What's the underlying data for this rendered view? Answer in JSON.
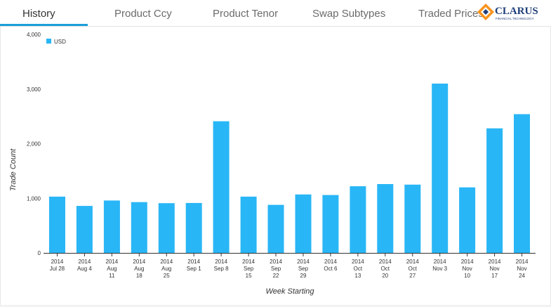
{
  "tabs": [
    {
      "label": "History",
      "active": true
    },
    {
      "label": "Product Ccy",
      "active": false
    },
    {
      "label": "Product Tenor",
      "active": false
    },
    {
      "label": "Swap Subtypes",
      "active": false
    },
    {
      "label": "Traded Prices",
      "active": false
    }
  ],
  "logo": {
    "name": "CLARUS",
    "tagline": "FINANCIAL TECHNOLOGY"
  },
  "colors": {
    "accent": "#1a9fd9",
    "bar": "#29b6f6",
    "logo_orange": "#f7941d",
    "logo_navy": "#1f3f7a"
  },
  "chart_data": {
    "type": "bar",
    "ylabel": "Trade Count",
    "xlabel": "Week Starting",
    "ylim": [
      0,
      4000
    ],
    "yticks": [
      0,
      1000,
      2000,
      3000,
      4000
    ],
    "ytick_labels": [
      "0",
      "1,000",
      "2,000",
      "3,000",
      "4,000"
    ],
    "legend_position": "top-left",
    "grid": false,
    "categories": [
      [
        "2014",
        "Jul 28"
      ],
      [
        "2014",
        "Aug 4"
      ],
      [
        "2014",
        "Aug",
        "11"
      ],
      [
        "2014",
        "Aug",
        "18"
      ],
      [
        "2014",
        "Aug",
        "25"
      ],
      [
        "2014",
        "Sep 1"
      ],
      [
        "2014",
        "Sep 8"
      ],
      [
        "2014",
        "Sep",
        "15"
      ],
      [
        "2014",
        "Sep",
        "22"
      ],
      [
        "2014",
        "Sep",
        "29"
      ],
      [
        "2014",
        "Oct 6"
      ],
      [
        "2014",
        "Oct",
        "13"
      ],
      [
        "2014",
        "Oct",
        "20"
      ],
      [
        "2014",
        "Oct",
        "27"
      ],
      [
        "2014",
        "Nov 3"
      ],
      [
        "2014",
        "Nov",
        "10"
      ],
      [
        "2014",
        "Nov",
        "17"
      ],
      [
        "2014",
        "Nov",
        "24"
      ]
    ],
    "series": [
      {
        "name": "USD",
        "color": "#29b6f6",
        "values": [
          1030,
          860,
          960,
          930,
          910,
          915,
          2410,
          1030,
          880,
          1070,
          1060,
          1220,
          1260,
          1250,
          3100,
          1200,
          2280,
          2540
        ]
      }
    ]
  }
}
